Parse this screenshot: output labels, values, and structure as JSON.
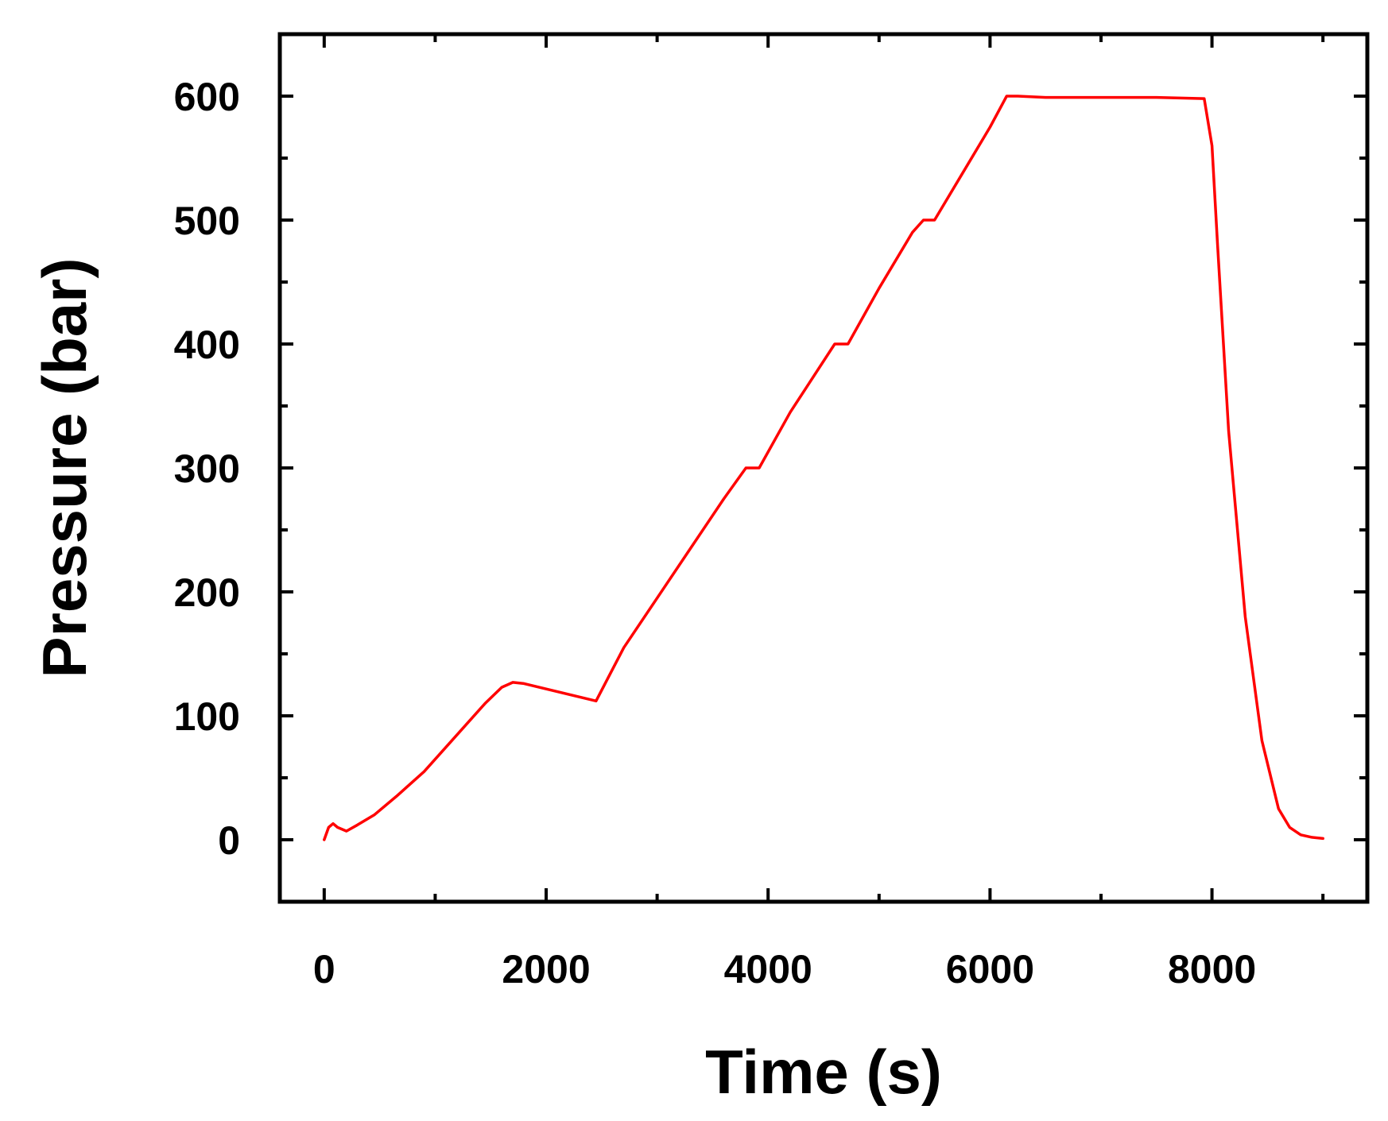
{
  "chart_data": {
    "type": "line",
    "title": "",
    "xlabel": "Time (s)",
    "ylabel": "Pressure (bar)",
    "xlim": [
      -400,
      9400
    ],
    "ylim": [
      -50,
      650
    ],
    "xticks": [
      0,
      2000,
      4000,
      6000,
      8000
    ],
    "xtick_labels": [
      "0",
      "2000",
      "4000",
      "6000",
      "8000"
    ],
    "yticks": [
      0,
      100,
      200,
      300,
      400,
      500,
      600
    ],
    "ytick_labels": [
      "0",
      "100",
      "200",
      "300",
      "400",
      "500",
      "600"
    ],
    "grid": false,
    "legend": "none",
    "series": [
      {
        "color": "#ff0000",
        "x": [
          0,
          40,
          80,
          120,
          200,
          300,
          450,
          650,
          900,
          1200,
          1450,
          1600,
          1700,
          1800,
          2450,
          2700,
          3000,
          3300,
          3600,
          3800,
          3920,
          4200,
          4600,
          4720,
          5000,
          5300,
          5400,
          5500,
          5800,
          6000,
          6150,
          6250,
          6500,
          7000,
          7500,
          7930,
          8000,
          8050,
          8150,
          8300,
          8450,
          8600,
          8700,
          8800,
          8900,
          9000
        ],
        "y": [
          0,
          10,
          13,
          10,
          7,
          12,
          20,
          35,
          55,
          85,
          110,
          123,
          127,
          126,
          112,
          155,
          195,
          235,
          275,
          300,
          300,
          345,
          400,
          400,
          445,
          490,
          500,
          500,
          545,
          575,
          600,
          600,
          599,
          599,
          599,
          598,
          560,
          480,
          330,
          180,
          80,
          25,
          10,
          4,
          2,
          1
        ]
      }
    ]
  }
}
